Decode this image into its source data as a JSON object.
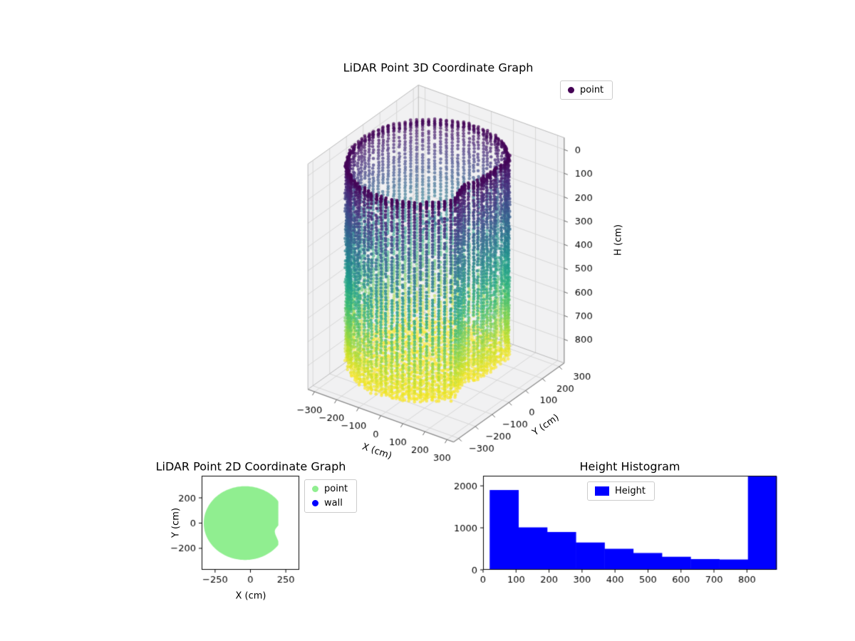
{
  "figure": {
    "background": "#ffffff"
  },
  "colors": {
    "pane": "#f1f1f2",
    "grid3d": "#d7d7d7",
    "edge3d": "#b8b8b8",
    "axis3d": "#666666",
    "tick_label": "#000000",
    "legend_border": "#cccccc"
  },
  "viridis": [
    "#440154",
    "#482878",
    "#3e4989",
    "#31688e",
    "#26828e",
    "#1f9e89",
    "#35b779",
    "#6ece58",
    "#b5de2b",
    "#fde725"
  ],
  "chart_data": [
    {
      "id": "lidar-3d",
      "type": "scatter",
      "projection": "3d",
      "title": "LiDAR Point 3D Coordinate Graph",
      "xlabel": "X (cm)",
      "ylabel": "Y (cm)",
      "zlabel": "H (cm)",
      "xticks": [
        -300,
        -200,
        -100,
        0,
        100,
        200,
        300
      ],
      "yticks": [
        -300,
        -200,
        -100,
        0,
        100,
        200,
        300
      ],
      "zticks": [
        0,
        100,
        200,
        300,
        400,
        500,
        600,
        700,
        800
      ],
      "xlim": [
        -330,
        330
      ],
      "ylim": [
        -330,
        330
      ],
      "zlim": [
        -50,
        900
      ],
      "z_axis_inverted": true,
      "colormap": "viridis",
      "color_by": "height",
      "legend": [
        {
          "label": "point",
          "marker_color": "#440154"
        }
      ],
      "point_cloud": {
        "shape": "room-cylinder-with-flat-wall",
        "center_x": -38,
        "center_y": 0,
        "radius": 292,
        "flat_chord": 235,
        "height_min": 0,
        "height_max": 850,
        "wall_columns": 84,
        "wall_step": 13,
        "floor_grid_step": 14,
        "seed": 11
      }
    },
    {
      "id": "lidar-2d",
      "type": "scatter",
      "title": "LiDAR Point 2D Coordinate Graph",
      "xlabel": "X (cm)",
      "ylabel": "Y (cm)",
      "xticks": [
        -250,
        0,
        250
      ],
      "yticks": [
        -200,
        0,
        200
      ],
      "xlim": [
        -345,
        345
      ],
      "ylim": [
        -370,
        375
      ],
      "legend": [
        {
          "label": "point",
          "color": "#90ee90"
        },
        {
          "label": "wall",
          "color": "#0000ff"
        }
      ]
    },
    {
      "id": "height-histogram",
      "type": "bar",
      "title": "Height Histogram",
      "legend": [
        {
          "label": "Height",
          "color": "#0000ff"
        }
      ],
      "bin_start": 20,
      "bin_width": 87,
      "values": [
        1900,
        1010,
        900,
        650,
        500,
        400,
        310,
        255,
        245,
        2230
      ],
      "xticks": [
        0,
        100,
        200,
        300,
        400,
        500,
        600,
        700,
        800
      ],
      "yticks": [
        0,
        1000,
        2000
      ],
      "xlim": [
        0,
        890
      ],
      "ylim": [
        0,
        2240
      ]
    }
  ]
}
